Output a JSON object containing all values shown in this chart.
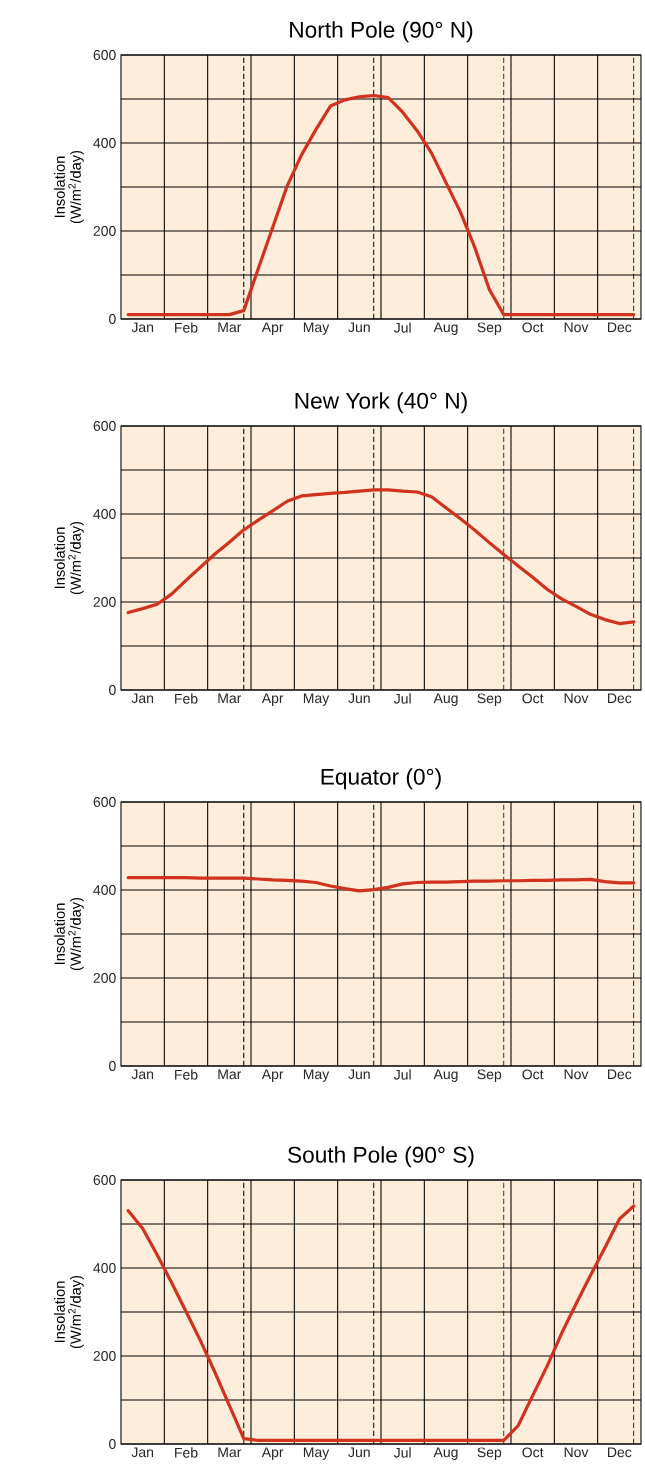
{
  "chart_data": [
    {
      "type": "line",
      "title": "North Pole (90° N)",
      "ylabel": "Insolation (W/m$^{2}$/day)",
      "ylim": [
        0,
        600
      ],
      "grid": true,
      "categories": [
        null,
        "Jan",
        null,
        null,
        "Feb",
        null,
        null,
        "Mar",
        null,
        null,
        "Apr",
        null,
        null,
        "May",
        null,
        null,
        "Jun",
        null,
        null,
        "Jul",
        null,
        null,
        "Aug",
        null,
        null,
        "Sep",
        null,
        null,
        "Oct",
        null,
        null,
        "Nov",
        null,
        null,
        "Dec",
        null
      ],
      "yticks": [
        0,
        {
          "value": 100,
          "label": null
        },
        200,
        {
          "value": 300,
          "label": null
        },
        400,
        {
          "value": 500,
          "label": null
        },
        600
      ],
      "series": [
        {
          "color": "#d0321e",
          "values": [
            10,
            10,
            10,
            10,
            10,
            10,
            10,
            10,
            19,
            114,
            208,
            302,
            373,
            431,
            484,
            498,
            505,
            508,
            503,
            470,
            428,
            377,
            310,
            243,
            162,
            67,
            10,
            10,
            10,
            10,
            10,
            10,
            10,
            10,
            10,
            10
          ]
        }
      ]
    },
    {
      "type": "line",
      "title": "New York (40° N)",
      "ylabel": "Insolation (W/m$^{2}$/day)",
      "ylim": [
        0,
        600
      ],
      "grid": true,
      "categories": [
        null,
        "Jan",
        null,
        null,
        "Feb",
        null,
        null,
        "Mar",
        null,
        null,
        "Apr",
        null,
        null,
        "May",
        null,
        null,
        "Jun",
        null,
        null,
        "Jul",
        null,
        null,
        "Aug",
        null,
        null,
        "Sep",
        null,
        null,
        "Oct",
        null,
        null,
        "Nov",
        null,
        null,
        "Dec",
        null
      ],
      "yticks": [
        0,
        {
          "value": 100,
          "label": null
        },
        200,
        {
          "value": 300,
          "label": null
        },
        400,
        {
          "value": 500,
          "label": null
        },
        600
      ],
      "series": [
        {
          "color": "#d0321e",
          "values": [
            176,
            185,
            195,
            218,
            249,
            279,
            309,
            336,
            364,
            386,
            407,
            429,
            441,
            444,
            447,
            449,
            452,
            455,
            455,
            452,
            450,
            439,
            414,
            389,
            363,
            335,
            308,
            282,
            256,
            229,
            207,
            190,
            172,
            160,
            151,
            155
          ]
        }
      ]
    },
    {
      "type": "line",
      "title": "Equator (0°)",
      "ylabel": "Insolation (W/m$^{2}$/day)",
      "ylim": [
        0,
        600
      ],
      "grid": true,
      "categories": [
        null,
        "Jan",
        null,
        null,
        "Feb",
        null,
        null,
        "Mar",
        null,
        null,
        "Apr",
        null,
        null,
        "May",
        null,
        null,
        "Jun",
        null,
        null,
        "Jul",
        null,
        null,
        "Aug",
        null,
        null,
        "Sep",
        null,
        null,
        "Oct",
        null,
        null,
        "Nov",
        null,
        null,
        "Dec",
        null
      ],
      "yticks": [
        0,
        {
          "value": 100,
          "label": null
        },
        200,
        {
          "value": 300,
          "label": null
        },
        400,
        {
          "value": 500,
          "label": null
        },
        600
      ],
      "series": [
        {
          "color": "#d0321e",
          "values": [
            428,
            428,
            428,
            428,
            428,
            427,
            427,
            427,
            427,
            425,
            423,
            422,
            420,
            417,
            409,
            403,
            398,
            401,
            406,
            414,
            417,
            418,
            418,
            419,
            420,
            420,
            421,
            421,
            422,
            422,
            423,
            423,
            424,
            419,
            416,
            416
          ]
        }
      ]
    },
    {
      "type": "line",
      "title": "South Pole (90° S)",
      "ylabel": "Insolation (W/m$^{2}$/day)",
      "ylim": [
        0,
        600
      ],
      "grid": true,
      "categories": [
        null,
        "Jan",
        null,
        null,
        "Feb",
        null,
        null,
        "Mar",
        null,
        null,
        "Apr",
        null,
        null,
        "May",
        null,
        null,
        "Jun",
        null,
        null,
        "Jul",
        null,
        null,
        "Aug",
        null,
        null,
        "Sep",
        null,
        null,
        "Oct",
        null,
        null,
        "Nov",
        null,
        null,
        "Dec",
        null
      ],
      "yticks": [
        0,
        {
          "value": 100,
          "label": null
        },
        200,
        {
          "value": 300,
          "label": null
        },
        400,
        {
          "value": 500,
          "label": null
        },
        600
      ],
      "series": [
        {
          "color": "#d0321e",
          "values": [
            530,
            490,
            430,
            367,
            301,
            235,
            163,
            88,
            12,
            8,
            8,
            8,
            8,
            8,
            8,
            8,
            8,
            8,
            8,
            8,
            8,
            8,
            8,
            8,
            8,
            8,
            8,
            42,
            110,
            177,
            251,
            318,
            383,
            446,
            511,
            541
          ]
        }
      ]
    }
  ]
}
